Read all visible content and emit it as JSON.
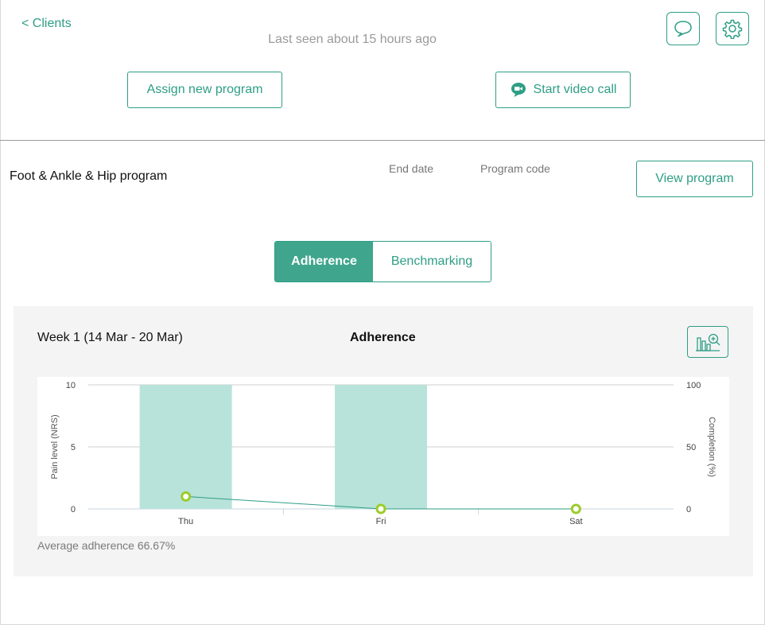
{
  "header": {
    "back_label": "< Clients",
    "last_seen": "Last seen about 15 hours ago",
    "chat_icon": "chat-bubble-icon",
    "settings_icon": "gear-icon",
    "assign_label": "Assign new program",
    "video_label": "Start video call",
    "video_icon": "video-chat-icon"
  },
  "program": {
    "name": "Foot & Ankle & Hip program",
    "end_date_label": "End date",
    "program_code_label": "Program code",
    "view_label": "View program"
  },
  "tabs": [
    {
      "label": "Adherence",
      "active": true
    },
    {
      "label": "Benchmarking",
      "active": false
    }
  ],
  "panel": {
    "week_label": "Week 1 (14 Mar - 20 Mar)",
    "title": "Adherence",
    "zoom_icon": "chart-zoom-icon",
    "average": "Average adherence 66.67%"
  },
  "chart_data": {
    "type": "bar",
    "categories": [
      "Thu",
      "Fri",
      "Sat"
    ],
    "series": [
      {
        "kind": "bar",
        "axis": "right",
        "values": [
          100,
          100,
          0
        ],
        "color": "#b8e3da"
      },
      {
        "kind": "line",
        "axis": "left",
        "values": [
          1,
          0,
          0
        ],
        "color": "#2e9e86",
        "marker_color": "#9ccc2a"
      }
    ],
    "ylabel_left": "Pain level (NRS)",
    "ylabel_right": "Completion (%)",
    "ylim_left": [
      0,
      10
    ],
    "ylim_right": [
      0,
      100
    ],
    "yticks_left": [
      "0",
      "5",
      "10"
    ],
    "yticks_right": [
      "0",
      "50",
      "100"
    ],
    "grid": true
  }
}
